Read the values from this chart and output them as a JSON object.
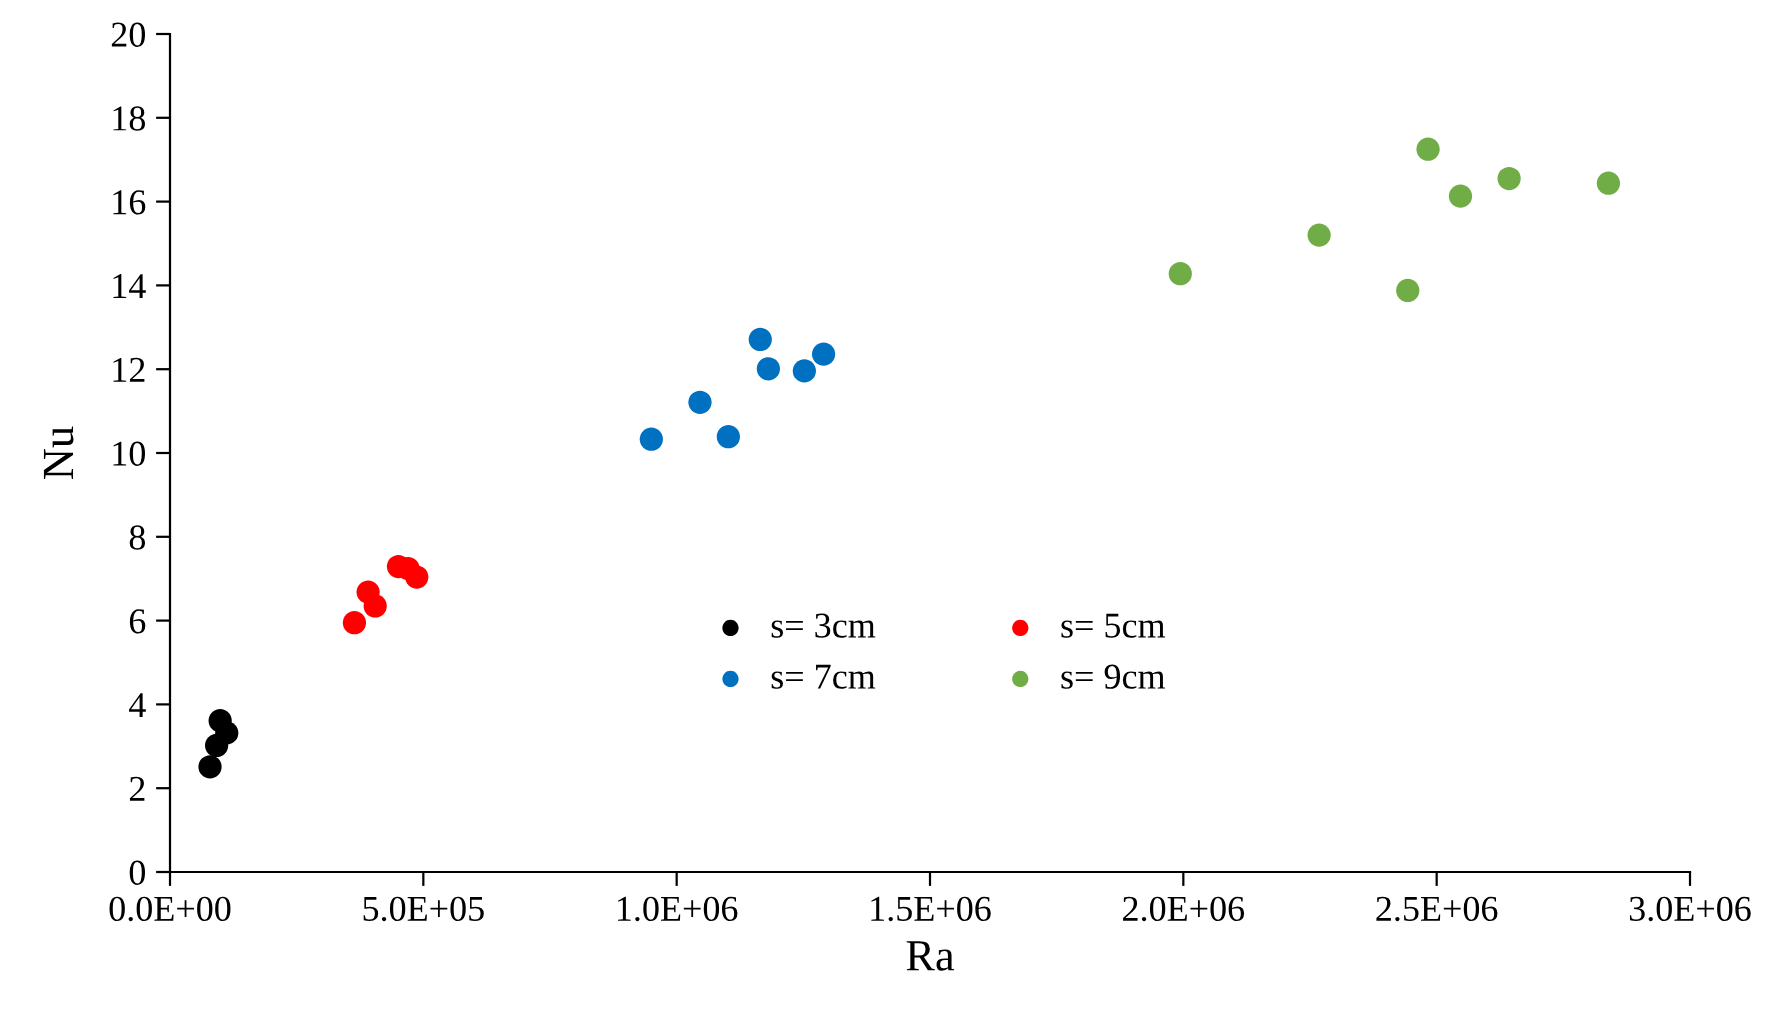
{
  "chart_data": {
    "type": "scatter",
    "xlabel": "Ra",
    "ylabel": "Nu",
    "xlim": [
      0,
      3000000
    ],
    "ylim": [
      0,
      20
    ],
    "xticks": [
      {
        "value": 0,
        "label": "0.0E+00"
      },
      {
        "value": 500000,
        "label": "5.0E+05"
      },
      {
        "value": 1000000,
        "label": "1.0E+06"
      },
      {
        "value": 1500000,
        "label": "1.5E+06"
      },
      {
        "value": 2000000,
        "label": "2.0E+06"
      },
      {
        "value": 2500000,
        "label": "2.5E+06"
      },
      {
        "value": 3000000,
        "label": "3.0E+06"
      }
    ],
    "yticks": [
      0,
      2,
      4,
      6,
      8,
      10,
      12,
      14,
      16,
      18,
      20
    ],
    "grid": false,
    "legend": "center",
    "marker": "circle",
    "series": [
      {
        "name": "s= 3cm",
        "color": "#000000",
        "x": [
          79000,
          86000,
          92000,
          99000,
          112000
        ],
        "values": [
          2.51,
          null,
          3.02,
          3.61,
          3.32
        ]
      },
      {
        "name": "s= 5cm",
        "color": "#ff0000",
        "x": [
          364000,
          391000,
          405000,
          451000,
          470000,
          487000
        ],
        "values": [
          5.95,
          6.68,
          6.35,
          7.29,
          7.24,
          7.04
        ]
      },
      {
        "name": "s= 7cm",
        "color": "#0070c0",
        "x": [
          950000,
          1046000,
          1102000,
          1165000,
          1181000,
          1252000,
          1290000
        ],
        "values": [
          10.33,
          11.21,
          10.39,
          12.71,
          12.01,
          11.96,
          12.36
        ]
      },
      {
        "name": "s= 9cm",
        "color": "#70ad47",
        "x": [
          1994000,
          2268000,
          2443000,
          2483000,
          2547000,
          2643000,
          2839000
        ],
        "values": [
          14.28,
          15.2,
          13.88,
          17.25,
          16.13,
          16.55,
          16.44
        ]
      }
    ]
  }
}
